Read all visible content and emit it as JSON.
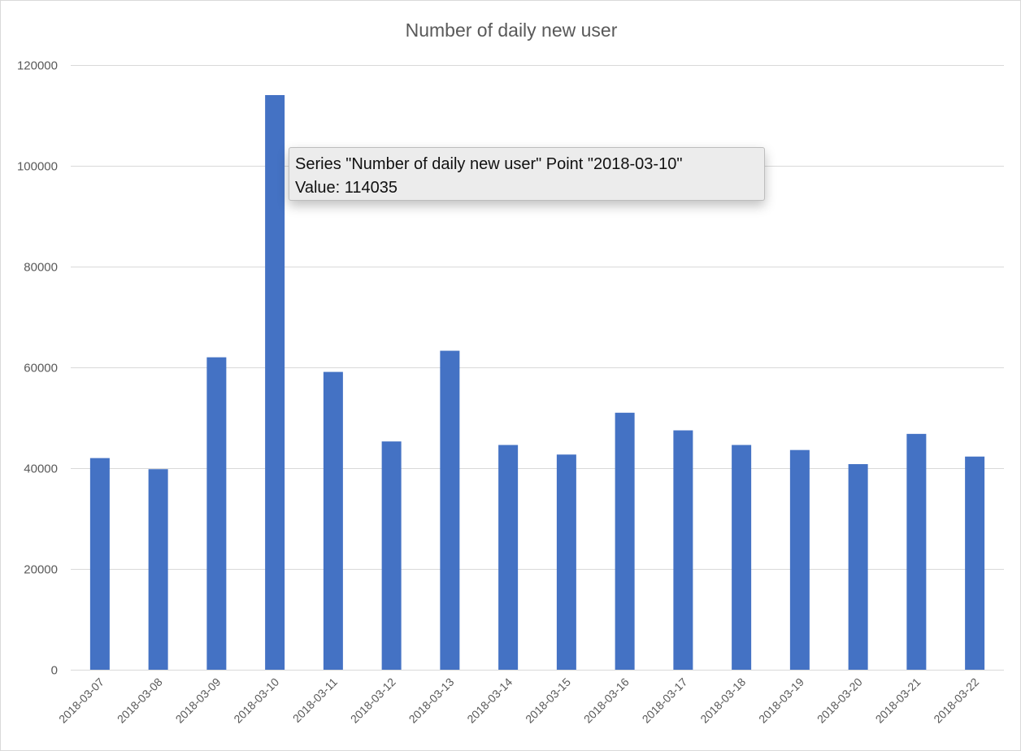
{
  "chart_data": {
    "type": "bar",
    "title": "Number of daily new user",
    "xlabel": "",
    "ylabel": "",
    "categories": [
      "2018-03-07",
      "2018-03-08",
      "2018-03-09",
      "2018-03-10",
      "2018-03-11",
      "2018-03-12",
      "2018-03-13",
      "2018-03-14",
      "2018-03-15",
      "2018-03-16",
      "2018-03-17",
      "2018-03-18",
      "2018-03-19",
      "2018-03-20",
      "2018-03-21",
      "2018-03-22"
    ],
    "series": [
      {
        "name": "Number of daily new user",
        "values": [
          42000,
          39800,
          62000,
          114035,
          59100,
          45300,
          63300,
          44600,
          42700,
          51000,
          47500,
          44600,
          43600,
          40800,
          46800,
          42300
        ]
      }
    ],
    "ylim": [
      0,
      120000
    ],
    "yticks": [
      0,
      20000,
      40000,
      60000,
      80000,
      100000,
      120000
    ],
    "ytick_labels": [
      "0",
      "20000",
      "40000",
      "60000",
      "80000",
      "100000",
      "120000"
    ],
    "grid": true,
    "legend": "none",
    "bar_color": "#4472c4"
  },
  "tooltip": {
    "line1": "Series \"Number of daily new user\" Point \"2018-03-10\"",
    "line2": "Value: 114035"
  }
}
